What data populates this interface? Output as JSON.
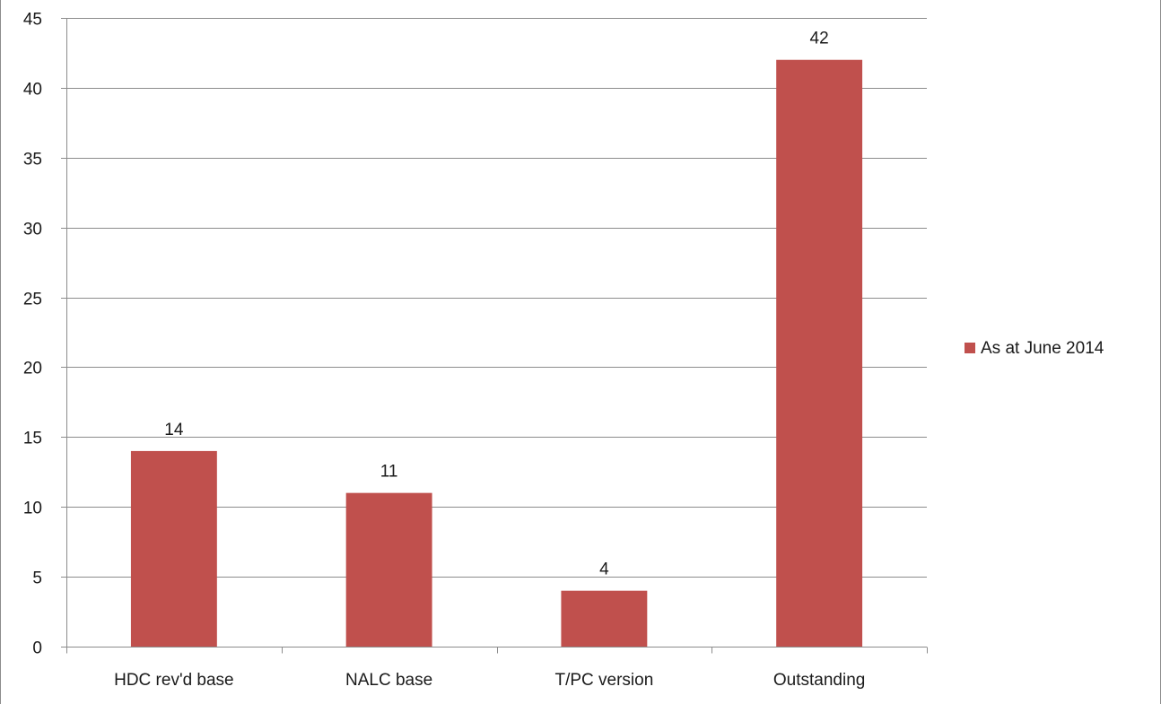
{
  "chart_data": {
    "type": "bar",
    "title": "",
    "xlabel": "",
    "ylabel": "",
    "categories": [
      "HDC rev'd base",
      "NALC base",
      "T/PC version",
      "Outstanding"
    ],
    "series": [
      {
        "name": "As at June 2014",
        "values": [
          14,
          11,
          4,
          42
        ],
        "color": "#c0504d"
      }
    ],
    "ylim": [
      0,
      45
    ],
    "yticks": [
      0,
      5,
      10,
      15,
      20,
      25,
      30,
      35,
      40,
      45
    ],
    "data_labels": true,
    "grid": true,
    "legend_position": "right"
  }
}
